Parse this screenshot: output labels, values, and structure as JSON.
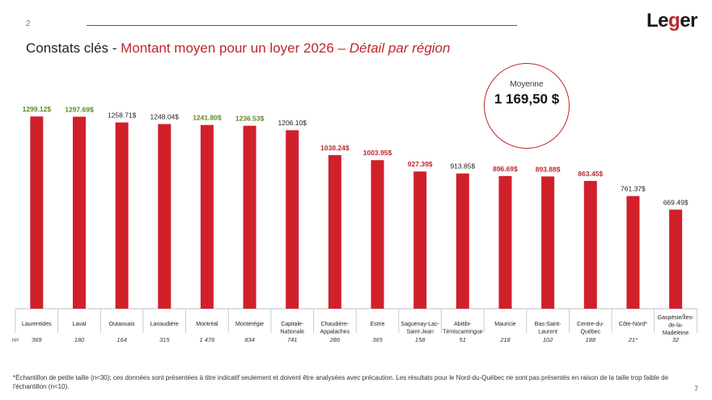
{
  "slide_number": "2",
  "page_number": "7",
  "logo": {
    "text_before": "Le",
    "text_accent": "g",
    "text_after": "er"
  },
  "title": {
    "prefix": "Constats clés - ",
    "main": "Montant moyen pour un loyer 2026 – ",
    "italic": "Détail par région"
  },
  "average": {
    "label": "Moyenne",
    "value": "1 169,50 $"
  },
  "footnote": "*Échantillon de petite taille (n<30); ces données sont présentées à titre indicatif seulement et doivent être analysées avec précaution. Les résultats pour le Nord-du-Québec ne sont pas présentés en raison de la taille trop faible de l'échantillon (n<10).",
  "colors": {
    "bar": "#d0202a",
    "above_avg_label": "#5a8a1e",
    "below_avg_label": "#c0262c",
    "neutral_label": "#222222",
    "axis": "#bfbfbf"
  },
  "chart_data": {
    "type": "bar",
    "ylim": [
      0,
      1300
    ],
    "n_label": "n=",
    "bars": [
      {
        "category": [
          "Laurentides"
        ],
        "value": 1299.12,
        "label": "1299.12$",
        "label_style": "above",
        "n": "369"
      },
      {
        "category": [
          "Laval"
        ],
        "value": 1297.69,
        "label": "1297.69$",
        "label_style": "above",
        "n": "180"
      },
      {
        "category": [
          "Outaouais"
        ],
        "value": 1258.71,
        "label": "1258.71$",
        "label_style": "neutral",
        "n": "164"
      },
      {
        "category": [
          "Lanaudière"
        ],
        "value": 1248.04,
        "label": "1248.04$",
        "label_style": "neutral",
        "n": "315"
      },
      {
        "category": [
          "Montréal"
        ],
        "value": 1241.8,
        "label": "1241.80$",
        "label_style": "above",
        "n": "1 476"
      },
      {
        "category": [
          "Montérégie"
        ],
        "value": 1236.53,
        "label": "1236.53$",
        "label_style": "above",
        "n": "834"
      },
      {
        "category": [
          "Capitale-",
          "Nationale"
        ],
        "value": 1206.1,
        "label": "1206.10$",
        "label_style": "neutral",
        "n": "741"
      },
      {
        "category": [
          "Chaudière-",
          "Appalaches"
        ],
        "value": 1038.24,
        "label": "1038.24$",
        "label_style": "below",
        "n": "286"
      },
      {
        "category": [
          "Estrie"
        ],
        "value": 1003.95,
        "label": "1003.95$",
        "label_style": "below",
        "n": "365"
      },
      {
        "category": [
          "Saguenay-Lac-",
          "Saint-Jean"
        ],
        "value": 927.39,
        "label": "927.39$",
        "label_style": "below",
        "n": "158"
      },
      {
        "category": [
          "Abitibi-",
          "Témiscamingue"
        ],
        "value": 913.85,
        "label": "913.85$",
        "label_style": "neutral",
        "n": "51"
      },
      {
        "category": [
          "Mauricie"
        ],
        "value": 896.69,
        "label": "896.69$",
        "label_style": "below",
        "n": "218"
      },
      {
        "category": [
          "Bas-Saint-",
          "Laurent"
        ],
        "value": 893.88,
        "label": "893.88$",
        "label_style": "below",
        "n": "102"
      },
      {
        "category": [
          "Centre-du-",
          "Québec"
        ],
        "value": 863.45,
        "label": "863.45$",
        "label_style": "below",
        "n": "188"
      },
      {
        "category": [
          "Côte-Nord*"
        ],
        "value": 761.37,
        "label": "761.37$",
        "label_style": "neutral",
        "n": "21*"
      },
      {
        "category": [
          "Gaspésie/Îles-",
          "de-la-",
          "Madeleine"
        ],
        "value": 669.49,
        "label": "669.49$",
        "label_style": "neutral",
        "n": "32"
      }
    ]
  }
}
